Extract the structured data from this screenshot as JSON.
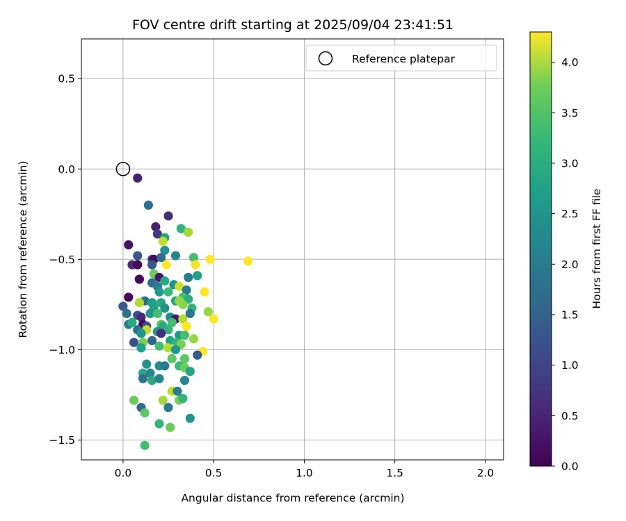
{
  "chart_data": {
    "type": "scatter",
    "title": "FOV centre drift starting at 2025/09/04 23:41:51",
    "xlabel": "Angular distance from reference (arcmin)",
    "ylabel": "Rotation from reference (arcmin)",
    "xlim": [
      -0.23,
      2.1
    ],
    "ylim": [
      -1.61,
      0.72
    ],
    "xticks": [
      0.0,
      0.5,
      1.0,
      1.5,
      2.0
    ],
    "xtick_labels": [
      "0.0",
      "0.5",
      "1.0",
      "1.5",
      "2.0"
    ],
    "yticks": [
      0.5,
      0.0,
      -0.5,
      -1.0,
      -1.5
    ],
    "ytick_labels": [
      "0.5",
      "0.0",
      "−0.5",
      "−1.0",
      "−1.5"
    ],
    "grid": true,
    "legend": {
      "placement": "upper right",
      "entries": [
        "Reference platepar"
      ]
    },
    "reference_point": {
      "name": "Reference platepar",
      "x": 0.0,
      "y": 0.0
    },
    "colorbar": {
      "label": "Hours from first FF file",
      "colormap": "viridis",
      "range": [
        0.0,
        4.3
      ],
      "ticks": [
        0.0,
        0.5,
        1.0,
        1.5,
        2.0,
        2.5,
        3.0,
        3.5,
        4.0
      ],
      "tick_labels": [
        "0.0",
        "0.5",
        "1.0",
        "1.5",
        "2.0",
        "2.5",
        "3.0",
        "3.5",
        "4.0"
      ]
    },
    "series": [
      {
        "points": [
          [
            0.08,
            -0.05,
            0.4
          ],
          [
            0.03,
            -0.42,
            0.2
          ],
          [
            0.05,
            -0.53,
            0.5
          ],
          [
            0.08,
            -0.53,
            0.1
          ],
          [
            0.09,
            -0.61,
            0.3
          ],
          [
            0.09,
            -0.61,
            0.1
          ],
          [
            0.03,
            -0.71,
            0.05
          ],
          [
            0.0,
            -0.76,
            1.2
          ],
          [
            0.14,
            -0.2,
            1.6
          ],
          [
            0.25,
            -0.26,
            0.6
          ],
          [
            0.18,
            -0.32,
            0.4
          ],
          [
            0.19,
            -0.36,
            0.7
          ],
          [
            0.23,
            -0.38,
            2.5
          ],
          [
            0.23,
            -0.45,
            2.2
          ],
          [
            0.16,
            -0.5,
            1.0
          ],
          [
            0.17,
            -0.5,
            0.1
          ],
          [
            0.08,
            -0.48,
            1.2
          ],
          [
            0.16,
            -0.53,
            1.2
          ],
          [
            0.21,
            -0.49,
            1.5
          ],
          [
            0.29,
            -0.48,
            2.0
          ],
          [
            0.32,
            -0.33,
            2.8
          ],
          [
            0.36,
            -0.35,
            3.7
          ],
          [
            0.22,
            -0.4,
            3.9
          ],
          [
            0.39,
            -0.49,
            3.0
          ],
          [
            0.4,
            -0.53,
            4.2
          ],
          [
            0.48,
            -0.5,
            4.3
          ],
          [
            0.69,
            -0.51,
            4.3
          ],
          [
            0.41,
            -0.59,
            2.4
          ],
          [
            0.36,
            -0.6,
            1.8
          ],
          [
            0.24,
            -0.53,
            4.3
          ],
          [
            0.17,
            -0.58,
            3.3
          ],
          [
            0.2,
            -0.6,
            0.3
          ],
          [
            0.16,
            -0.63,
            1.5
          ],
          [
            0.23,
            -0.62,
            2.6
          ],
          [
            0.19,
            -0.65,
            1.8
          ],
          [
            0.2,
            -0.68,
            2.3
          ],
          [
            0.25,
            -0.68,
            2.9
          ],
          [
            0.28,
            -0.64,
            2.2
          ],
          [
            0.31,
            -0.65,
            4.0
          ],
          [
            0.35,
            -0.67,
            1.8
          ],
          [
            0.45,
            -0.68,
            4.3
          ],
          [
            0.33,
            -0.71,
            3.0
          ],
          [
            0.36,
            -0.72,
            2.7
          ],
          [
            0.29,
            -0.73,
            2.5
          ],
          [
            0.12,
            -0.73,
            1.6
          ],
          [
            0.09,
            -0.74,
            3.8
          ],
          [
            0.16,
            -0.74,
            2.4
          ],
          [
            0.21,
            -0.74,
            2.6
          ],
          [
            0.33,
            -0.75,
            3.5
          ],
          [
            0.23,
            -0.77,
            2.2
          ],
          [
            0.17,
            -0.77,
            2.4
          ],
          [
            0.38,
            -0.77,
            2.8
          ],
          [
            0.31,
            -0.73,
            3.6
          ],
          [
            0.47,
            -0.79,
            3.6
          ],
          [
            0.37,
            -0.8,
            1.7
          ],
          [
            0.02,
            -0.8,
            1.6
          ],
          [
            0.08,
            -0.81,
            1.1
          ],
          [
            0.1,
            -0.82,
            0.5
          ],
          [
            0.15,
            -0.8,
            2.3
          ],
          [
            0.19,
            -0.8,
            3.0
          ],
          [
            0.26,
            -0.82,
            2.1
          ],
          [
            0.29,
            -0.83,
            0.3
          ],
          [
            0.5,
            -0.83,
            4.3
          ],
          [
            0.33,
            -0.83,
            3.8
          ],
          [
            0.03,
            -0.86,
            1.8
          ],
          [
            0.05,
            -0.85,
            2.6
          ],
          [
            0.11,
            -0.86,
            0.1
          ],
          [
            0.13,
            -0.87,
            1.0
          ],
          [
            0.21,
            -0.86,
            3.2
          ],
          [
            0.22,
            -0.87,
            2.6
          ],
          [
            0.35,
            -0.87,
            4.3
          ],
          [
            0.27,
            -0.85,
            3.0
          ],
          [
            0.08,
            -0.89,
            1.6
          ],
          [
            0.13,
            -0.89,
            3.9
          ],
          [
            0.19,
            -0.9,
            2.2
          ],
          [
            0.25,
            -0.89,
            2.8
          ],
          [
            0.1,
            -0.91,
            2.2
          ],
          [
            0.21,
            -0.91,
            0.6
          ],
          [
            0.31,
            -0.92,
            2.3
          ],
          [
            0.34,
            -0.92,
            3.0
          ],
          [
            0.06,
            -0.96,
            1.1
          ],
          [
            0.11,
            -0.96,
            3.4
          ],
          [
            0.16,
            -0.95,
            1.4
          ],
          [
            0.26,
            -0.95,
            2.5
          ],
          [
            0.3,
            -0.96,
            2.8
          ],
          [
            0.32,
            -0.97,
            3.4
          ],
          [
            0.39,
            -0.94,
            3.6
          ],
          [
            0.1,
            -0.99,
            2.4
          ],
          [
            0.2,
            -0.98,
            3.0
          ],
          [
            0.25,
            -0.99,
            3.8
          ],
          [
            0.29,
            -1.0,
            2.3
          ],
          [
            0.44,
            -1.01,
            4.3
          ],
          [
            0.41,
            -1.03,
            1.2
          ],
          [
            0.27,
            -1.05,
            3.2
          ],
          [
            0.34,
            -1.05,
            3.2
          ],
          [
            0.13,
            -1.08,
            2.2
          ],
          [
            0.2,
            -1.09,
            2.1
          ],
          [
            0.23,
            -1.09,
            1.8
          ],
          [
            0.31,
            -1.09,
            2.9
          ],
          [
            0.34,
            -1.1,
            3.3
          ],
          [
            0.11,
            -1.13,
            2.6
          ],
          [
            0.15,
            -1.13,
            2.0
          ],
          [
            0.37,
            -1.12,
            2.5
          ],
          [
            0.11,
            -1.16,
            1.6
          ],
          [
            0.16,
            -1.17,
            2.6
          ],
          [
            0.2,
            -1.16,
            2.0
          ],
          [
            0.34,
            -1.17,
            2.0
          ],
          [
            0.27,
            -1.23,
            3.9
          ],
          [
            0.3,
            -1.23,
            1.9
          ],
          [
            0.06,
            -1.28,
            3.3
          ],
          [
            0.22,
            -1.28,
            3.7
          ],
          [
            0.31,
            -1.28,
            3.4
          ],
          [
            0.33,
            -1.27,
            2.8
          ],
          [
            0.1,
            -1.32,
            1.5
          ],
          [
            0.25,
            -1.32,
            1.8
          ],
          [
            0.12,
            -1.35,
            3.2
          ],
          [
            0.37,
            -1.38,
            2.2
          ],
          [
            0.2,
            -1.41,
            2.8
          ],
          [
            0.26,
            -1.43,
            3.3
          ],
          [
            0.12,
            -1.53,
            3.0
          ]
        ]
      }
    ]
  }
}
